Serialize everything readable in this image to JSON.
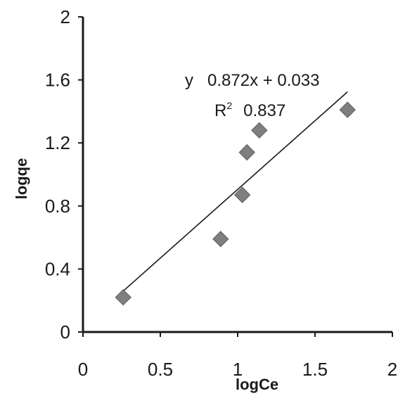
{
  "chart_data": {
    "type": "scatter",
    "title": "",
    "xlabel": "logCe",
    "ylabel": "logqe",
    "xlim": [
      0,
      2
    ],
    "ylim": [
      0,
      2
    ],
    "x_ticks": [
      "0",
      "0.5",
      "1",
      "1.5",
      "2"
    ],
    "y_ticks": [
      "0",
      "0.4",
      "0.8",
      "1.2",
      "1.6",
      "2"
    ],
    "series": [
      {
        "marker": "diamond",
        "color": "#7f7f7f",
        "points": [
          {
            "x": 0.26,
            "y": 0.22
          },
          {
            "x": 0.89,
            "y": 0.59
          },
          {
            "x": 1.03,
            "y": 0.87
          },
          {
            "x": 1.06,
            "y": 1.14
          },
          {
            "x": 1.14,
            "y": 1.28
          },
          {
            "x": 1.71,
            "y": 1.41
          }
        ]
      }
    ],
    "trendline": {
      "slope": 0.872,
      "intercept": 0.033,
      "x_range": [
        0.26,
        1.71
      ],
      "color": "#1a1a1a"
    },
    "annotations": {
      "equation": "y   0.872x + 0.033",
      "r2_label": "R",
      "r2_sup": "2",
      "r2_value": "0.837"
    },
    "grid": false,
    "legend": "none"
  }
}
